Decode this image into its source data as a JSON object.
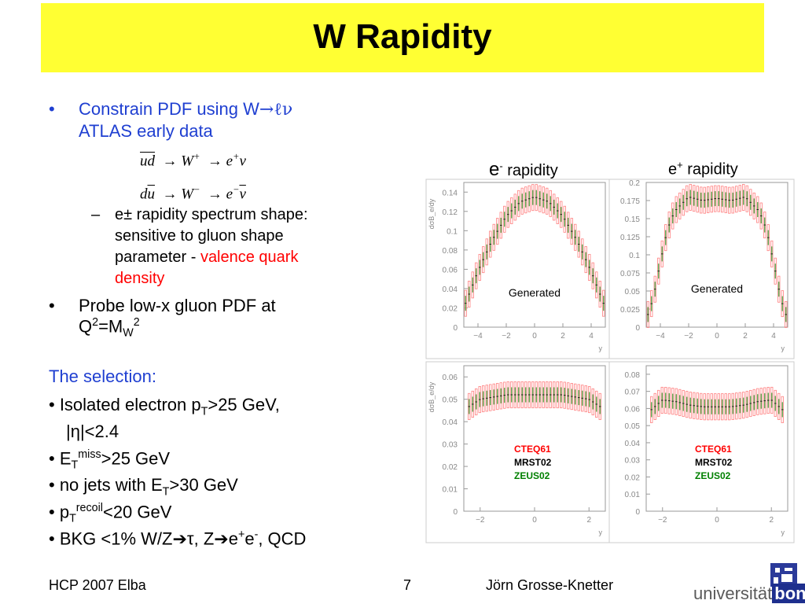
{
  "slide": {
    "title": "W Rapidity",
    "bullet1": {
      "line1_prefix": "Constrain PDF using W",
      "line1_arrow": "→ℓν",
      "line2": "ATLAS early data"
    },
    "eq1": {
      "lhs": "ud",
      "w": "W",
      "wsup": "+",
      "e": "e",
      "esup": "+",
      "nu": "ν"
    },
    "eq2": {
      "lhs": "du",
      "w": "W",
      "wsup": "−",
      "e": "e",
      "esup": "−",
      "nu": "ν"
    },
    "subbullet": {
      "dash": "–",
      "l1": "e± rapidity spectrum shape:",
      "l2": "sensitive to gluon shape",
      "l3_black": "parameter - ",
      "l3_red": "valence quark",
      "l4_red": "density"
    },
    "bullet2": {
      "l1": "Probe low-x gluon PDF at",
      "q": "Q",
      "qsup": "2",
      "eq": "=M",
      "wsub": "W",
      "wsup": "2"
    },
    "selection": {
      "heading": "The selection:",
      "items": {
        "i1a": "• Isolated electron p",
        "i1sub": "T",
        "i1b": ">25 GeV,",
        "i2": "|η|<2.4",
        "i3a": "• E",
        "i3sub": "T",
        "i3sup": "miss",
        "i3b": ">25 GeV",
        "i4a": "• no jets with E",
        "i4sub": "T",
        "i4b": ">30 GeV",
        "i5a": "• p",
        "i5sub": "T",
        "i5sup": "recoil",
        "i5b": "<20 GeV",
        "i6a": "• BKG <1% W/Z",
        "i6b": "τ, Z",
        "i6c": "e",
        "i6d": "+",
        "i6e": "e",
        "i6f": "-",
        "i6g": ", QCD"
      }
    },
    "plot_titles": {
      "eminus": "e",
      "eminus_sup": "-",
      "eminus_rest": " rapidity",
      "eplus": "e",
      "eplus_sup": "+",
      "eplus_rest": " rapidity"
    },
    "footer": {
      "left": "HCP 2007 Elba",
      "page": "7",
      "author": "Jörn Grosse-Knetter"
    },
    "logo": {
      "text": "universität",
      "bonn": "bonn"
    }
  },
  "colors": {
    "title_bg": "#ffff33",
    "blue_text": "#1f3fd1",
    "red_text": "#ff0000",
    "cteq": "#ff0000",
    "mrst": "#000000",
    "zeus": "#008000"
  },
  "chart_data": [
    {
      "id": "eminus_top",
      "type": "line",
      "title": "",
      "xlabel": "y",
      "ylabel": "dσB_e/dy",
      "xlim": [
        -5,
        5
      ],
      "ylim": [
        0,
        0.15
      ],
      "yticks": [
        0,
        0.02,
        0.04,
        0.06,
        0.08,
        0.1,
        0.12,
        0.14
      ],
      "xticks": [
        -4,
        -2,
        0,
        2,
        4
      ],
      "annotation": "Generated",
      "series": [
        {
          "x": [
            -5,
            -4,
            -3,
            -2,
            -1,
            0,
            1,
            2,
            3,
            4,
            5
          ],
          "values": [
            0.02,
            0.058,
            0.09,
            0.115,
            0.13,
            0.135,
            0.13,
            0.115,
            0.09,
            0.058,
            0.02
          ]
        }
      ]
    },
    {
      "id": "eplus_top",
      "type": "line",
      "title": "",
      "xlabel": "y",
      "ylabel": "",
      "xlim": [
        -5,
        5
      ],
      "ylim": [
        0,
        0.2
      ],
      "yticks": [
        0,
        0.025,
        0.05,
        0.075,
        0.1,
        0.125,
        0.15,
        0.175,
        0.2
      ],
      "xticks": [
        -4,
        -2,
        0,
        2,
        4
      ],
      "annotation": "Generated",
      "series": [
        {
          "x": [
            -5,
            -4.5,
            -4,
            -3.5,
            -3,
            -2.5,
            -2,
            -1,
            0,
            1,
            2,
            2.5,
            3,
            3.5,
            4,
            4.5,
            5
          ],
          "values": [
            0.01,
            0.04,
            0.09,
            0.135,
            0.16,
            0.17,
            0.18,
            0.175,
            0.178,
            0.175,
            0.18,
            0.17,
            0.16,
            0.135,
            0.09,
            0.04,
            0.01
          ]
        }
      ]
    },
    {
      "id": "eminus_bottom",
      "type": "line",
      "title": "",
      "xlabel": "y",
      "ylabel": "dσB_e/dy",
      "xlim": [
        -2.6,
        2.6
      ],
      "ylim": [
        0,
        0.065
      ],
      "yticks": [
        0,
        0.01,
        0.02,
        0.03,
        0.04,
        0.05,
        0.06
      ],
      "xticks": [
        -2,
        0,
        2
      ],
      "legend": [
        "CTEQ61",
        "MRST02",
        "ZEUS02"
      ],
      "series": [
        {
          "x": [
            -2.5,
            -2,
            -1.5,
            -1,
            -0.5,
            0,
            0.5,
            1,
            1.5,
            2,
            2.5
          ],
          "values": [
            0.046,
            0.05,
            0.051,
            0.052,
            0.052,
            0.052,
            0.052,
            0.052,
            0.051,
            0.05,
            0.046
          ]
        }
      ]
    },
    {
      "id": "eplus_bottom",
      "type": "line",
      "title": "",
      "xlabel": "y",
      "ylabel": "",
      "xlim": [
        -2.6,
        2.6
      ],
      "ylim": [
        0,
        0.085
      ],
      "yticks": [
        0,
        0.01,
        0.02,
        0.03,
        0.04,
        0.05,
        0.06,
        0.07,
        0.08
      ],
      "xticks": [
        -2,
        0,
        2
      ],
      "legend": [
        "CTEQ61",
        "MRST02",
        "ZEUS02"
      ],
      "series": [
        {
          "x": [
            -2.5,
            -2,
            -1.5,
            -1,
            -0.5,
            0,
            0.5,
            1,
            1.5,
            2,
            2.5
          ],
          "values": [
            0.058,
            0.065,
            0.064,
            0.062,
            0.061,
            0.061,
            0.061,
            0.062,
            0.064,
            0.065,
            0.058
          ]
        }
      ]
    }
  ]
}
